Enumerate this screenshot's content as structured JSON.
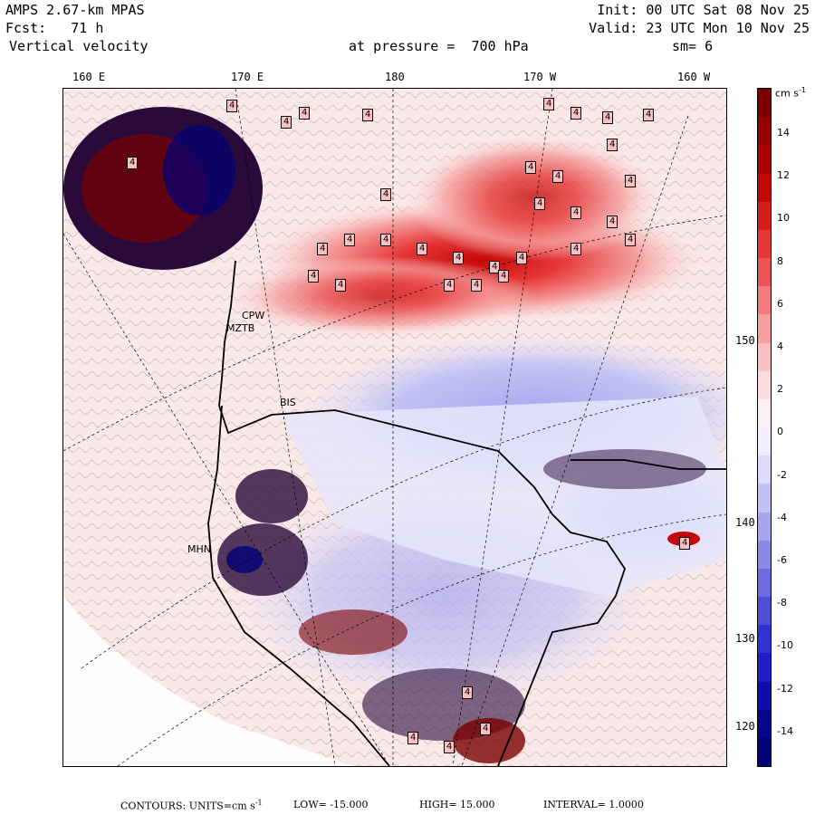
{
  "header": {
    "model": "AMPS 2.67-km MPAS",
    "forecast": "Fcst:   71 h",
    "field": "Vertical velocity",
    "init": "Init: 00 UTC Sat 08 Nov 25",
    "valid": "Valid: 23 UTC Mon 10 Nov 25",
    "pressure": "at pressure =  700 hPa",
    "smoothing": "sm= 6"
  },
  "map": {
    "longitude_labels": [
      "160 E",
      "170 E",
      "180",
      "170 W",
      "160 W"
    ],
    "latitude_labels": [
      "150 W",
      "140 W",
      "130 W",
      "120 W"
    ],
    "stations": [
      "CPW",
      "MZTB",
      "BIS",
      "MHN"
    ],
    "contour_highlight_label": "4"
  },
  "colorbar": {
    "units": "cm s",
    "units_exponent": "-1",
    "ticks": [
      "14",
      "12",
      "10",
      "8",
      "6",
      "4",
      "2",
      "0",
      "-2",
      "-4",
      "-6",
      "-8",
      "-10",
      "-12",
      "-14"
    ],
    "colors": [
      "#7a0000",
      "#940000",
      "#ad0000",
      "#c40808",
      "#d81c1c",
      "#e63636",
      "#ee5454",
      "#f27a7a",
      "#f59f9f",
      "#f8c0c0",
      "#fadcdc",
      "#fcefef",
      "#eeeefc",
      "#dcdcfa",
      "#c2c2f4",
      "#a6a6ee",
      "#8a8ae6",
      "#6c6ce0",
      "#4e4ed8",
      "#3232d2",
      "#1e1ec4",
      "#0e0eaa",
      "#050590",
      "#000078"
    ]
  },
  "footer": {
    "label": "CONTOURS:  UNITS=cm s",
    "units_exponent": "-1",
    "low": "LOW= -15.000",
    "high": "HIGH=  15.000",
    "interval": "INTERVAL=   1.0000"
  }
}
